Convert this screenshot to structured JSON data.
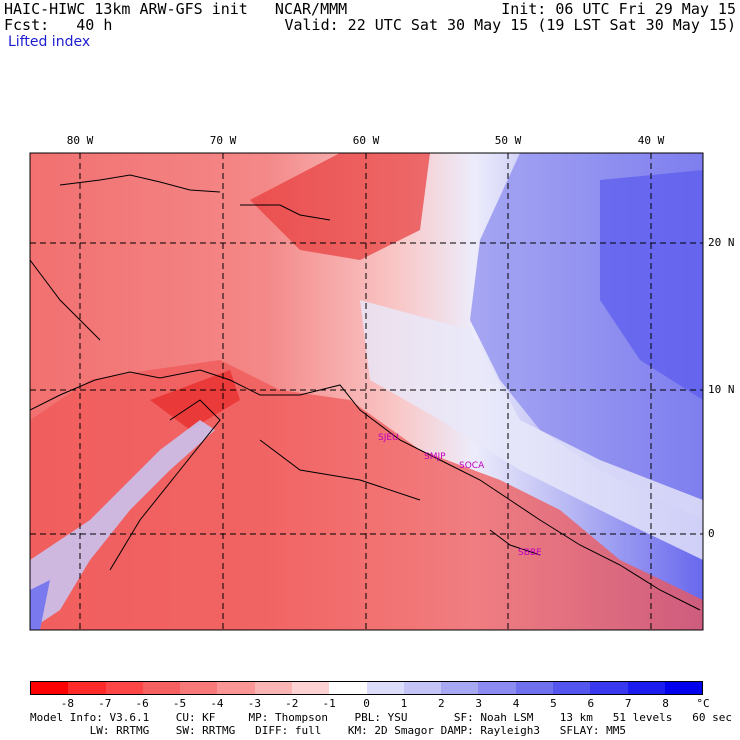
{
  "header": {
    "title": "HAIC-HIWC 13km ARW-GFS init   NCAR/MMM",
    "init": "Init: 06 UTC Fri 29 May 15",
    "fcst": "Fcst:   40 h",
    "valid": "Valid: 22 UTC Sat 30 May 15 (19 LST Sat 30 May 15)",
    "field": "Lifted index"
  },
  "map": {
    "lon_labels": [
      "80 W",
      "70 W",
      "60 W",
      "50 W",
      "40 W"
    ],
    "lat_labels": [
      "20 N",
      "10 N",
      "0"
    ],
    "stations": [
      "SJEU",
      "SMJP",
      "SOCA",
      "SBBE"
    ]
  },
  "colorbar": {
    "labels": [
      "-8",
      "-7",
      "-6",
      "-5",
      "-4",
      "-3",
      "-2",
      "-1",
      "0",
      "1",
      "2",
      "3",
      "4",
      "5",
      "6",
      "7",
      "8"
    ],
    "unit": "°C",
    "colors": [
      "#ff0000",
      "#ff2a2a",
      "#ff4646",
      "#f76060",
      "#f77a7a",
      "#fa9696",
      "#fbb4b4",
      "#fdd2d2",
      "#ffffff",
      "#dcdcfb",
      "#c4c4f6",
      "#a8a8f2",
      "#8c8cf0",
      "#7070ee",
      "#5454ee",
      "#3838ee",
      "#1c1cee",
      "#0000ee"
    ]
  },
  "footer": {
    "line1": "Model Info: V3.6.1    CU: KF     MP: Thompson    PBL: YSU       SF: Noah LSM    13 km   51 levels   60 sec",
    "line2": "         LW: RRTMG    SW: RRTMG   DIFF: full    KM: 2D Smagor DAMP: Rayleigh3   SFLAY: MM5"
  }
}
